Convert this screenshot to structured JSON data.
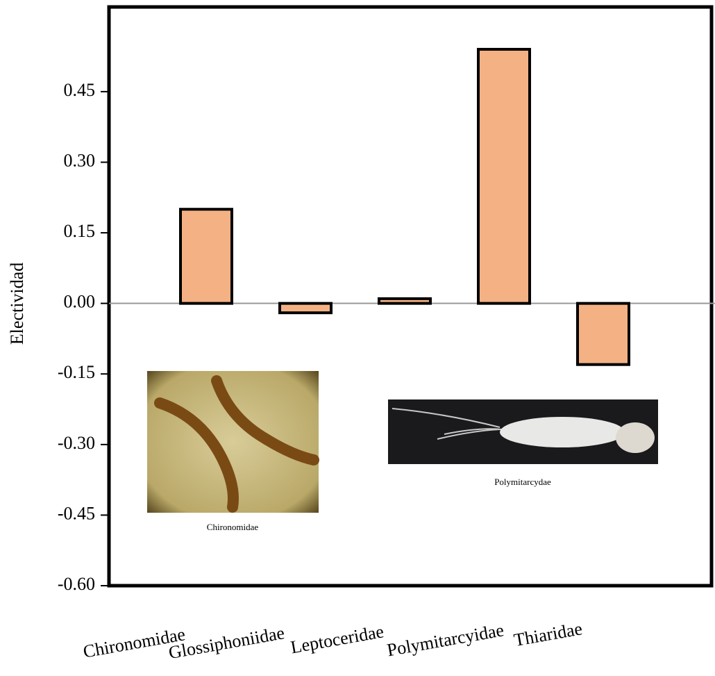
{
  "chart_data": {
    "type": "bar",
    "y_label": "Electividad",
    "categories": [
      "Chironomidae",
      "Glossiphoniidae",
      "Leptoceridae",
      "Polymitarcyidae",
      "Thiaridae"
    ],
    "values": [
      0.2,
      -0.02,
      0.01,
      0.54,
      -0.13
    ],
    "color": "#f4b183",
    "ylim": [
      -0.6,
      0.63
    ],
    "yticks": [
      {
        "value": -0.6,
        "label": "-0.60"
      },
      -0.45,
      {
        "value": -0.3,
        "label": "-0.30"
      },
      -0.15,
      {
        "value": 0,
        "label": "0.00"
      },
      0.15,
      {
        "value": 0.3,
        "label": "0.30"
      },
      0.45
    ],
    "annotations": [
      "Chironomidae",
      "Polymitarcydae"
    ]
  }
}
